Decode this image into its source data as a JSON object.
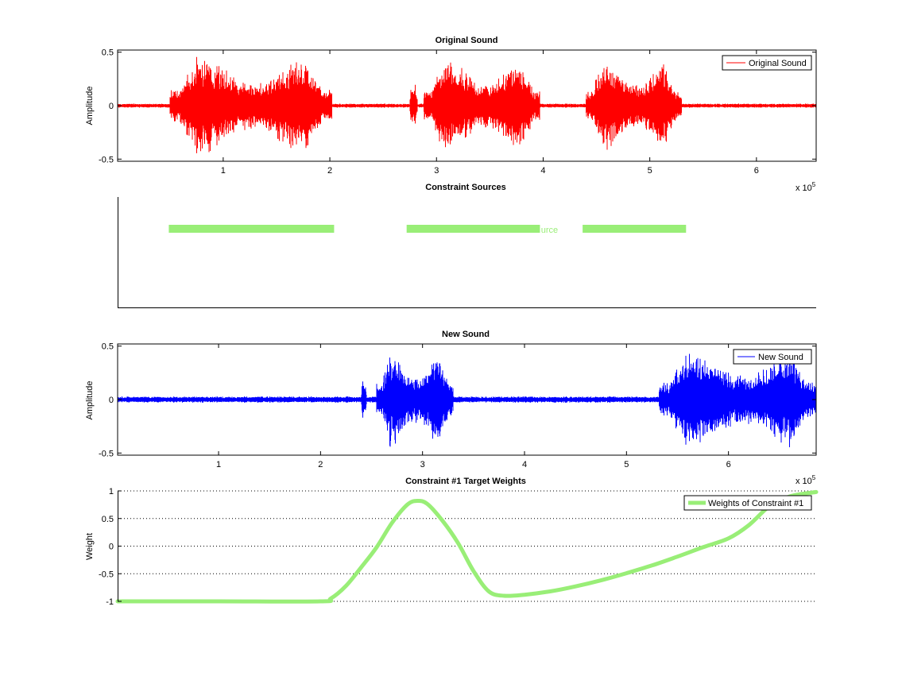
{
  "chart_data": [
    {
      "type": "line",
      "title": "Original Sound",
      "xlabel": "",
      "ylabel": "Amplitude",
      "xlim": [
        1000,
        656000
      ],
      "ylim": [
        -0.52,
        0.52
      ],
      "xticks": [
        1,
        2,
        3,
        4,
        5,
        6
      ],
      "xtick_labels": [
        "1",
        "2",
        "3",
        "4",
        "5",
        "6"
      ],
      "yticks": [
        -0.5,
        0,
        0.5
      ],
      "ytick_labels": [
        "-0.5",
        "0",
        "0.5"
      ],
      "x_exponent_label": "x 10",
      "x_exponent": "5",
      "legend_position": "top-right",
      "grid": false,
      "series": [
        {
          "name": "Original Sound",
          "color": "#ff0000",
          "noise_floor": 0.02,
          "bursts": [
            {
              "start": 50000,
              "end": 202000,
              "peak": 0.48
            },
            {
              "start": 275000,
              "end": 282000,
              "peak": 0.28
            },
            {
              "start": 288000,
              "end": 397000,
              "peak": 0.45
            },
            {
              "start": 440000,
              "end": 530000,
              "peak": 0.43
            }
          ]
        }
      ]
    },
    {
      "type": "bar",
      "title": "Constraint Sources",
      "xlim": [
        1000,
        656000
      ],
      "color": "#99ee77",
      "segments": [
        {
          "start": 49000,
          "end": 204000
        },
        {
          "start": 272000,
          "end": 397000
        },
        {
          "start": 437000,
          "end": 534000
        }
      ],
      "segment_labels": [
        {
          "text": "urce",
          "x": 398000
        }
      ]
    },
    {
      "type": "line",
      "title": "New Sound",
      "xlabel": "",
      "ylabel": "Amplitude",
      "xlim": [
        1000,
        686000
      ],
      "ylim": [
        -0.52,
        0.52
      ],
      "xticks": [
        1,
        2,
        3,
        4,
        5,
        6
      ],
      "xtick_labels": [
        "1",
        "2",
        "3",
        "4",
        "5",
        "6"
      ],
      "yticks": [
        -0.5,
        0,
        0.5
      ],
      "ytick_labels": [
        "-0.5",
        "0",
        "0.5"
      ],
      "x_exponent_label": "x 10",
      "x_exponent": "5",
      "legend_position": "top-right",
      "grid": false,
      "series": [
        {
          "name": "New Sound",
          "color": "#0000ff",
          "noise_floor": 0.03,
          "bursts": [
            {
              "start": 240000,
              "end": 245000,
              "peak": 0.25
            },
            {
              "start": 255000,
              "end": 330000,
              "peak": 0.45
            },
            {
              "start": 532000,
              "end": 686000,
              "peak": 0.48
            }
          ]
        }
      ]
    },
    {
      "type": "line",
      "title": "Constraint #1 Target Weights",
      "xlabel": "",
      "ylabel": "Weight",
      "xlim": [
        1000,
        686000
      ],
      "ylim": [
        -1,
        1
      ],
      "yticks": [
        -1,
        -0.5,
        0,
        0.5,
        1
      ],
      "ytick_labels": [
        "-1",
        "-0.5",
        "0",
        "0.5",
        "1"
      ],
      "x_exponent_label": "x 10",
      "x_exponent": "5",
      "legend_position": "top-right",
      "grid": true,
      "series": [
        {
          "name": "Weights of Constraint #1",
          "color": "#99ee77",
          "x": [
            1000,
            100000,
            200000,
            210000,
            225000,
            240000,
            255000,
            270000,
            285000,
            295000,
            305000,
            320000,
            335000,
            350000,
            365000,
            380000,
            400000,
            425000,
            450000,
            475000,
            500000,
            525000,
            550000,
            575000,
            600000,
            620000,
            640000,
            660000,
            686000
          ],
          "y": [
            -1,
            -1,
            -1,
            -0.95,
            -0.72,
            -0.38,
            -0.02,
            0.42,
            0.75,
            0.82,
            0.76,
            0.45,
            0.05,
            -0.45,
            -0.82,
            -0.9,
            -0.88,
            -0.82,
            -0.73,
            -0.62,
            -0.49,
            -0.35,
            -0.19,
            -0.02,
            0.14,
            0.38,
            0.72,
            0.9,
            0.98
          ]
        }
      ]
    }
  ]
}
